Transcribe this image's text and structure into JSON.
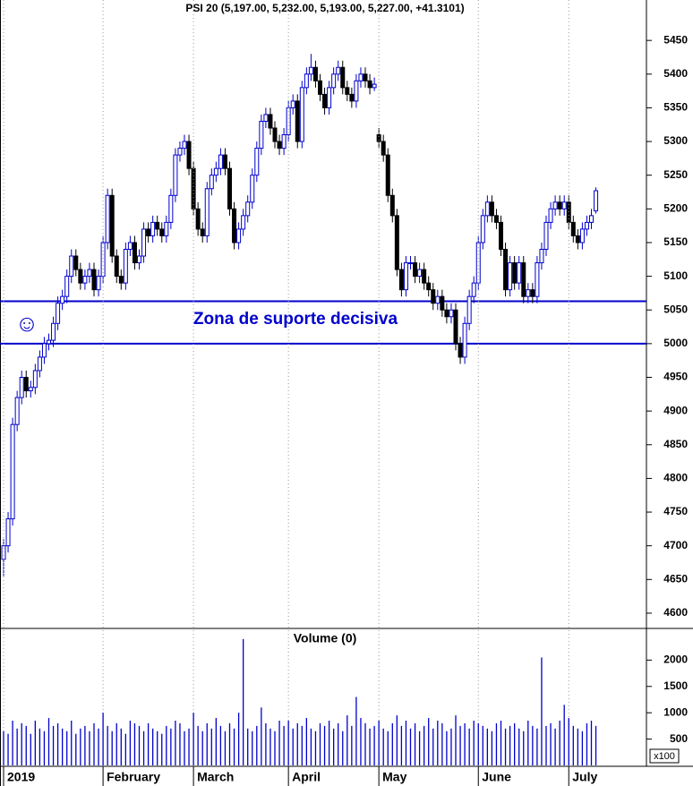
{
  "chart_data": [
    {
      "type": "candlestick",
      "title": "PSI 20 (5,197.00, 5,232.00, 5,193.00, 5,227.00, +41.3101)",
      "annotation": "Zona de suporte decisiva",
      "hlines": [
        5063,
        5000
      ],
      "hline_color": "#0000cc",
      "up_color": "#ffffff",
      "down_color": "#000000",
      "edge_color": "#0000cc",
      "ylim": [
        4580,
        5510
      ],
      "yticks": [
        4600,
        4650,
        4700,
        4750,
        4800,
        4850,
        4900,
        4950,
        5000,
        5050,
        5100,
        5150,
        5200,
        5250,
        5300,
        5350,
        5400,
        5450
      ],
      "categories": [
        "2019",
        null,
        null,
        null,
        null,
        null,
        null,
        null,
        null,
        null,
        null,
        null,
        null,
        null,
        null,
        null,
        null,
        null,
        null,
        null,
        null,
        null,
        "February",
        null,
        null,
        null,
        null,
        null,
        null,
        null,
        null,
        null,
        null,
        null,
        null,
        null,
        null,
        null,
        null,
        null,
        null,
        null,
        "March",
        null,
        null,
        null,
        null,
        null,
        null,
        null,
        null,
        null,
        null,
        null,
        null,
        null,
        null,
        null,
        null,
        null,
        null,
        null,
        null,
        "April",
        null,
        null,
        null,
        null,
        null,
        null,
        null,
        null,
        null,
        null,
        null,
        null,
        null,
        null,
        null,
        null,
        null,
        null,
        null,
        "May",
        null,
        null,
        null,
        null,
        null,
        null,
        null,
        null,
        null,
        null,
        null,
        null,
        null,
        null,
        null,
        null,
        null,
        null,
        null,
        null,
        null,
        "June",
        null,
        null,
        null,
        null,
        null,
        null,
        null,
        null,
        null,
        null,
        null,
        null,
        null,
        null,
        null,
        null,
        null,
        null,
        null,
        "July",
        null,
        null,
        null,
        null,
        null,
        null
      ],
      "open": [
        4680,
        4700,
        4740,
        4880,
        4920,
        4950,
        4930,
        4935,
        4960,
        4980,
        5000,
        5005,
        5030,
        5060,
        5070,
        5100,
        5130,
        5110,
        5090,
        5100,
        5110,
        5080,
        5100,
        5150,
        5220,
        5130,
        5100,
        5090,
        5140,
        5150,
        5120,
        5130,
        5170,
        5160,
        5180,
        5170,
        5160,
        5180,
        5220,
        5280,
        5290,
        5300,
        5260,
        5200,
        5170,
        5160,
        5230,
        5250,
        5260,
        5280,
        5260,
        5200,
        5150,
        5170,
        5190,
        5210,
        5250,
        5290,
        5330,
        5340,
        5320,
        5300,
        5290,
        5310,
        5350,
        5360,
        5300,
        5380,
        5400,
        5410,
        5390,
        5370,
        5350,
        5380,
        5400,
        5410,
        5380,
        5370,
        5360,
        5390,
        5400,
        5390,
        5380,
        5310,
        5300,
        5280,
        5220,
        5190,
        5110,
        5080,
        5120,
        5120,
        5100,
        5110,
        5090,
        5080,
        5060,
        5070,
        5050,
        5040,
        5050,
        5000,
        4980,
        5030,
        5070,
        5090,
        5150,
        5190,
        5210,
        5190,
        5180,
        5140,
        5080,
        5120,
        5090,
        5120,
        5070,
        5080,
        5070,
        5120,
        5140,
        5180,
        5200,
        5210,
        5200,
        5210,
        5180,
        5160,
        5150,
        5170,
        5180,
        5197
      ],
      "high": [
        4710,
        4750,
        4890,
        4930,
        4960,
        4960,
        4945,
        4970,
        4990,
        5010,
        5015,
        5040,
        5070,
        5080,
        5110,
        5140,
        5140,
        5120,
        5110,
        5120,
        5120,
        5110,
        5160,
        5230,
        5230,
        5140,
        5110,
        5150,
        5160,
        5160,
        5140,
        5180,
        5180,
        5190,
        5190,
        5180,
        5190,
        5230,
        5290,
        5300,
        5310,
        5310,
        5270,
        5210,
        5180,
        5240,
        5260,
        5270,
        5290,
        5290,
        5270,
        5210,
        5180,
        5200,
        5220,
        5260,
        5300,
        5340,
        5350,
        5350,
        5330,
        5310,
        5320,
        5360,
        5370,
        5370,
        5390,
        5410,
        5430,
        5420,
        5400,
        5380,
        5390,
        5410,
        5420,
        5420,
        5390,
        5380,
        5400,
        5410,
        5410,
        5400,
        5395,
        5320,
        5310,
        5290,
        5230,
        5200,
        5120,
        5130,
        5130,
        5130,
        5120,
        5120,
        5100,
        5090,
        5080,
        5080,
        5060,
        5060,
        5060,
        5010,
        5040,
        5080,
        5100,
        5160,
        5200,
        5220,
        5220,
        5200,
        5190,
        5150,
        5130,
        5130,
        5130,
        5130,
        5090,
        5090,
        5130,
        5150,
        5190,
        5210,
        5220,
        5220,
        5220,
        5220,
        5190,
        5170,
        5180,
        5190,
        5200,
        5232
      ],
      "low": [
        4655,
        4690,
        4730,
        4870,
        4910,
        4920,
        4920,
        4925,
        4950,
        4970,
        4990,
        4995,
        5020,
        5050,
        5060,
        5090,
        5100,
        5080,
        5080,
        5090,
        5070,
        5070,
        5090,
        5140,
        5120,
        5090,
        5080,
        5080,
        5130,
        5110,
        5110,
        5120,
        5150,
        5150,
        5160,
        5150,
        5150,
        5170,
        5210,
        5270,
        5280,
        5250,
        5190,
        5160,
        5150,
        5150,
        5220,
        5240,
        5250,
        5250,
        5190,
        5140,
        5140,
        5160,
        5180,
        5200,
        5240,
        5280,
        5320,
        5310,
        5290,
        5280,
        5280,
        5300,
        5340,
        5290,
        5290,
        5370,
        5390,
        5380,
        5360,
        5340,
        5340,
        5370,
        5390,
        5370,
        5360,
        5350,
        5350,
        5380,
        5380,
        5370,
        5375,
        5290,
        5270,
        5210,
        5180,
        5100,
        5070,
        5070,
        5110,
        5090,
        5090,
        5080,
        5070,
        5050,
        5050,
        5040,
        5030,
        5030,
        4990,
        4970,
        4970,
        5020,
        5060,
        5080,
        5140,
        5180,
        5180,
        5170,
        5130,
        5070,
        5070,
        5080,
        5080,
        5060,
        5060,
        5060,
        5060,
        5110,
        5130,
        5170,
        5190,
        5190,
        5190,
        5170,
        5150,
        5140,
        5140,
        5160,
        5170,
        5193
      ],
      "close": [
        4700,
        4740,
        4880,
        4920,
        4950,
        4930,
        4935,
        4960,
        4980,
        5000,
        5005,
        5030,
        5060,
        5070,
        5100,
        5130,
        5110,
        5090,
        5100,
        5110,
        5080,
        5100,
        5150,
        5220,
        5130,
        5100,
        5090,
        5140,
        5150,
        5120,
        5130,
        5170,
        5160,
        5180,
        5170,
        5160,
        5180,
        5220,
        5280,
        5290,
        5300,
        5260,
        5200,
        5170,
        5160,
        5230,
        5250,
        5260,
        5280,
        5260,
        5200,
        5150,
        5170,
        5190,
        5210,
        5250,
        5290,
        5330,
        5340,
        5320,
        5300,
        5290,
        5310,
        5350,
        5360,
        5300,
        5380,
        5400,
        5410,
        5390,
        5370,
        5350,
        5380,
        5400,
        5410,
        5380,
        5370,
        5360,
        5390,
        5400,
        5390,
        5380,
        5385,
        5300,
        5280,
        5220,
        5190,
        5110,
        5080,
        5120,
        5120,
        5100,
        5110,
        5090,
        5080,
        5060,
        5070,
        5050,
        5040,
        5050,
        5000,
        4980,
        5030,
        5070,
        5090,
        5150,
        5190,
        5210,
        5190,
        5180,
        5140,
        5080,
        5120,
        5090,
        5120,
        5070,
        5080,
        5070,
        5120,
        5140,
        5180,
        5200,
        5210,
        5200,
        5210,
        5180,
        5160,
        5150,
        5170,
        5180,
        5190,
        5227
      ]
    },
    {
      "type": "bar",
      "title": "Volume (0)",
      "scale_label": "x100",
      "color": "#0000cc",
      "ylim": [
        0,
        2550
      ],
      "yticks": [
        500,
        1000,
        1500,
        2000
      ],
      "values": [
        650,
        600,
        850,
        700,
        800,
        750,
        600,
        850,
        700,
        650,
        900,
        750,
        800,
        700,
        650,
        850,
        600,
        700,
        750,
        650,
        800,
        700,
        1000,
        750,
        650,
        800,
        700,
        600,
        850,
        800,
        750,
        650,
        800,
        700,
        650,
        600,
        750,
        700,
        850,
        800,
        650,
        700,
        1000,
        750,
        650,
        800,
        700,
        900,
        750,
        650,
        800,
        700,
        1000,
        2400,
        700,
        650,
        750,
        1100,
        800,
        700,
        650,
        850,
        750,
        850,
        700,
        800,
        750,
        900,
        700,
        650,
        800,
        750,
        850,
        700,
        800,
        650,
        950,
        750,
        1300,
        900,
        800,
        700,
        750,
        850,
        700,
        650,
        800,
        950,
        750,
        850,
        700,
        800,
        650,
        750,
        900,
        700,
        850,
        800,
        650,
        700,
        950,
        750,
        800,
        700,
        850,
        800,
        750,
        700,
        650,
        800,
        850,
        700,
        750,
        800,
        700,
        650,
        850,
        750,
        700,
        2050,
        750,
        800,
        700,
        850,
        1150,
        900,
        750,
        700,
        650,
        800,
        850,
        750
      ]
    }
  ]
}
